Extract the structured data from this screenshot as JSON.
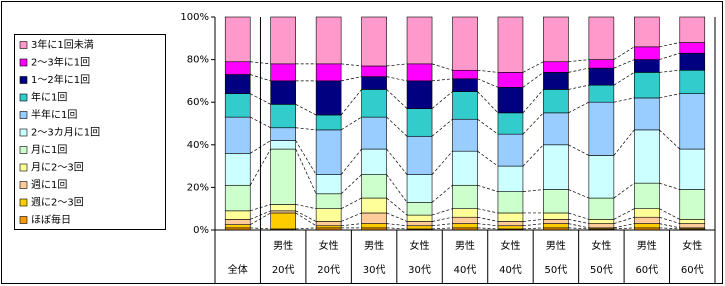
{
  "chart_data": {
    "type": "stacked-bar-100",
    "categories": [
      [
        "全体"
      ],
      [
        "男性",
        "20代"
      ],
      [
        "女性",
        "20代"
      ],
      [
        "男性",
        "30代"
      ],
      [
        "女性",
        "30代"
      ],
      [
        "男性",
        "40代"
      ],
      [
        "女性",
        "40代"
      ],
      [
        "男性",
        "50代"
      ],
      [
        "女性",
        "50代"
      ],
      [
        "男性",
        "60代"
      ],
      [
        "女性",
        "60代"
      ]
    ],
    "series": [
      {
        "name": "ほぼ毎日",
        "color": "#ff9900",
        "values": [
          1,
          0.5,
          1,
          1,
          0.5,
          1,
          0.5,
          1,
          0.5,
          1,
          0.5
        ]
      },
      {
        "name": "週に2～3回",
        "color": "#ffcc00",
        "values": [
          1.5,
          7.5,
          1,
          2,
          1.5,
          2,
          1.5,
          2,
          0.5,
          2,
          0.5
        ]
      },
      {
        "name": "週に1回",
        "color": "#ffcc99",
        "values": [
          2.5,
          1,
          2,
          5,
          2,
          3,
          2,
          2,
          2,
          3,
          2
        ]
      },
      {
        "name": "月に2～3回",
        "color": "#ffff99",
        "values": [
          4,
          3,
          6,
          7,
          3,
          4,
          4,
          3,
          2,
          4,
          2
        ]
      },
      {
        "name": "月に1回",
        "color": "#ccffcc",
        "values": [
          12,
          26,
          7,
          11,
          6,
          11,
          10,
          11,
          10,
          12,
          14
        ]
      },
      {
        "name": "2～3カ月に1回",
        "color": "#ccffff",
        "values": [
          15,
          4,
          9,
          12,
          13,
          16,
          12,
          21,
          20,
          25,
          19
        ]
      },
      {
        "name": "半年に1回",
        "color": "#99ccff",
        "values": [
          17,
          6,
          21,
          15,
          18,
          15,
          15,
          15,
          25,
          15,
          26
        ]
      },
      {
        "name": "年に1回",
        "color": "#33cccc",
        "values": [
          11,
          11,
          7,
          13,
          13,
          13,
          10,
          11,
          8,
          12,
          11
        ]
      },
      {
        "name": "1～2年に1回",
        "color": "#000080",
        "values": [
          9,
          11,
          16,
          6,
          13,
          6,
          12,
          8,
          8,
          6,
          8
        ]
      },
      {
        "name": "2～3年に1回",
        "color": "#ff00ff",
        "values": [
          6,
          8,
          8,
          5,
          8,
          4,
          7,
          5,
          4,
          6,
          5
        ]
      },
      {
        "name": "3年に1回未満",
        "color": "#ff99cc",
        "values": [
          21,
          22,
          22,
          23,
          22,
          25,
          26,
          21,
          20,
          14,
          12
        ]
      }
    ],
    "ylim": [
      0,
      100
    ],
    "yticks": [
      {
        "value": 0,
        "label": "0%"
      },
      {
        "value": 20,
        "label": "20%"
      },
      {
        "value": 40,
        "label": "40%"
      },
      {
        "value": 60,
        "label": "60%"
      },
      {
        "value": 80,
        "label": "80%"
      },
      {
        "value": 100,
        "label": "100%"
      }
    ],
    "legend": "left"
  }
}
